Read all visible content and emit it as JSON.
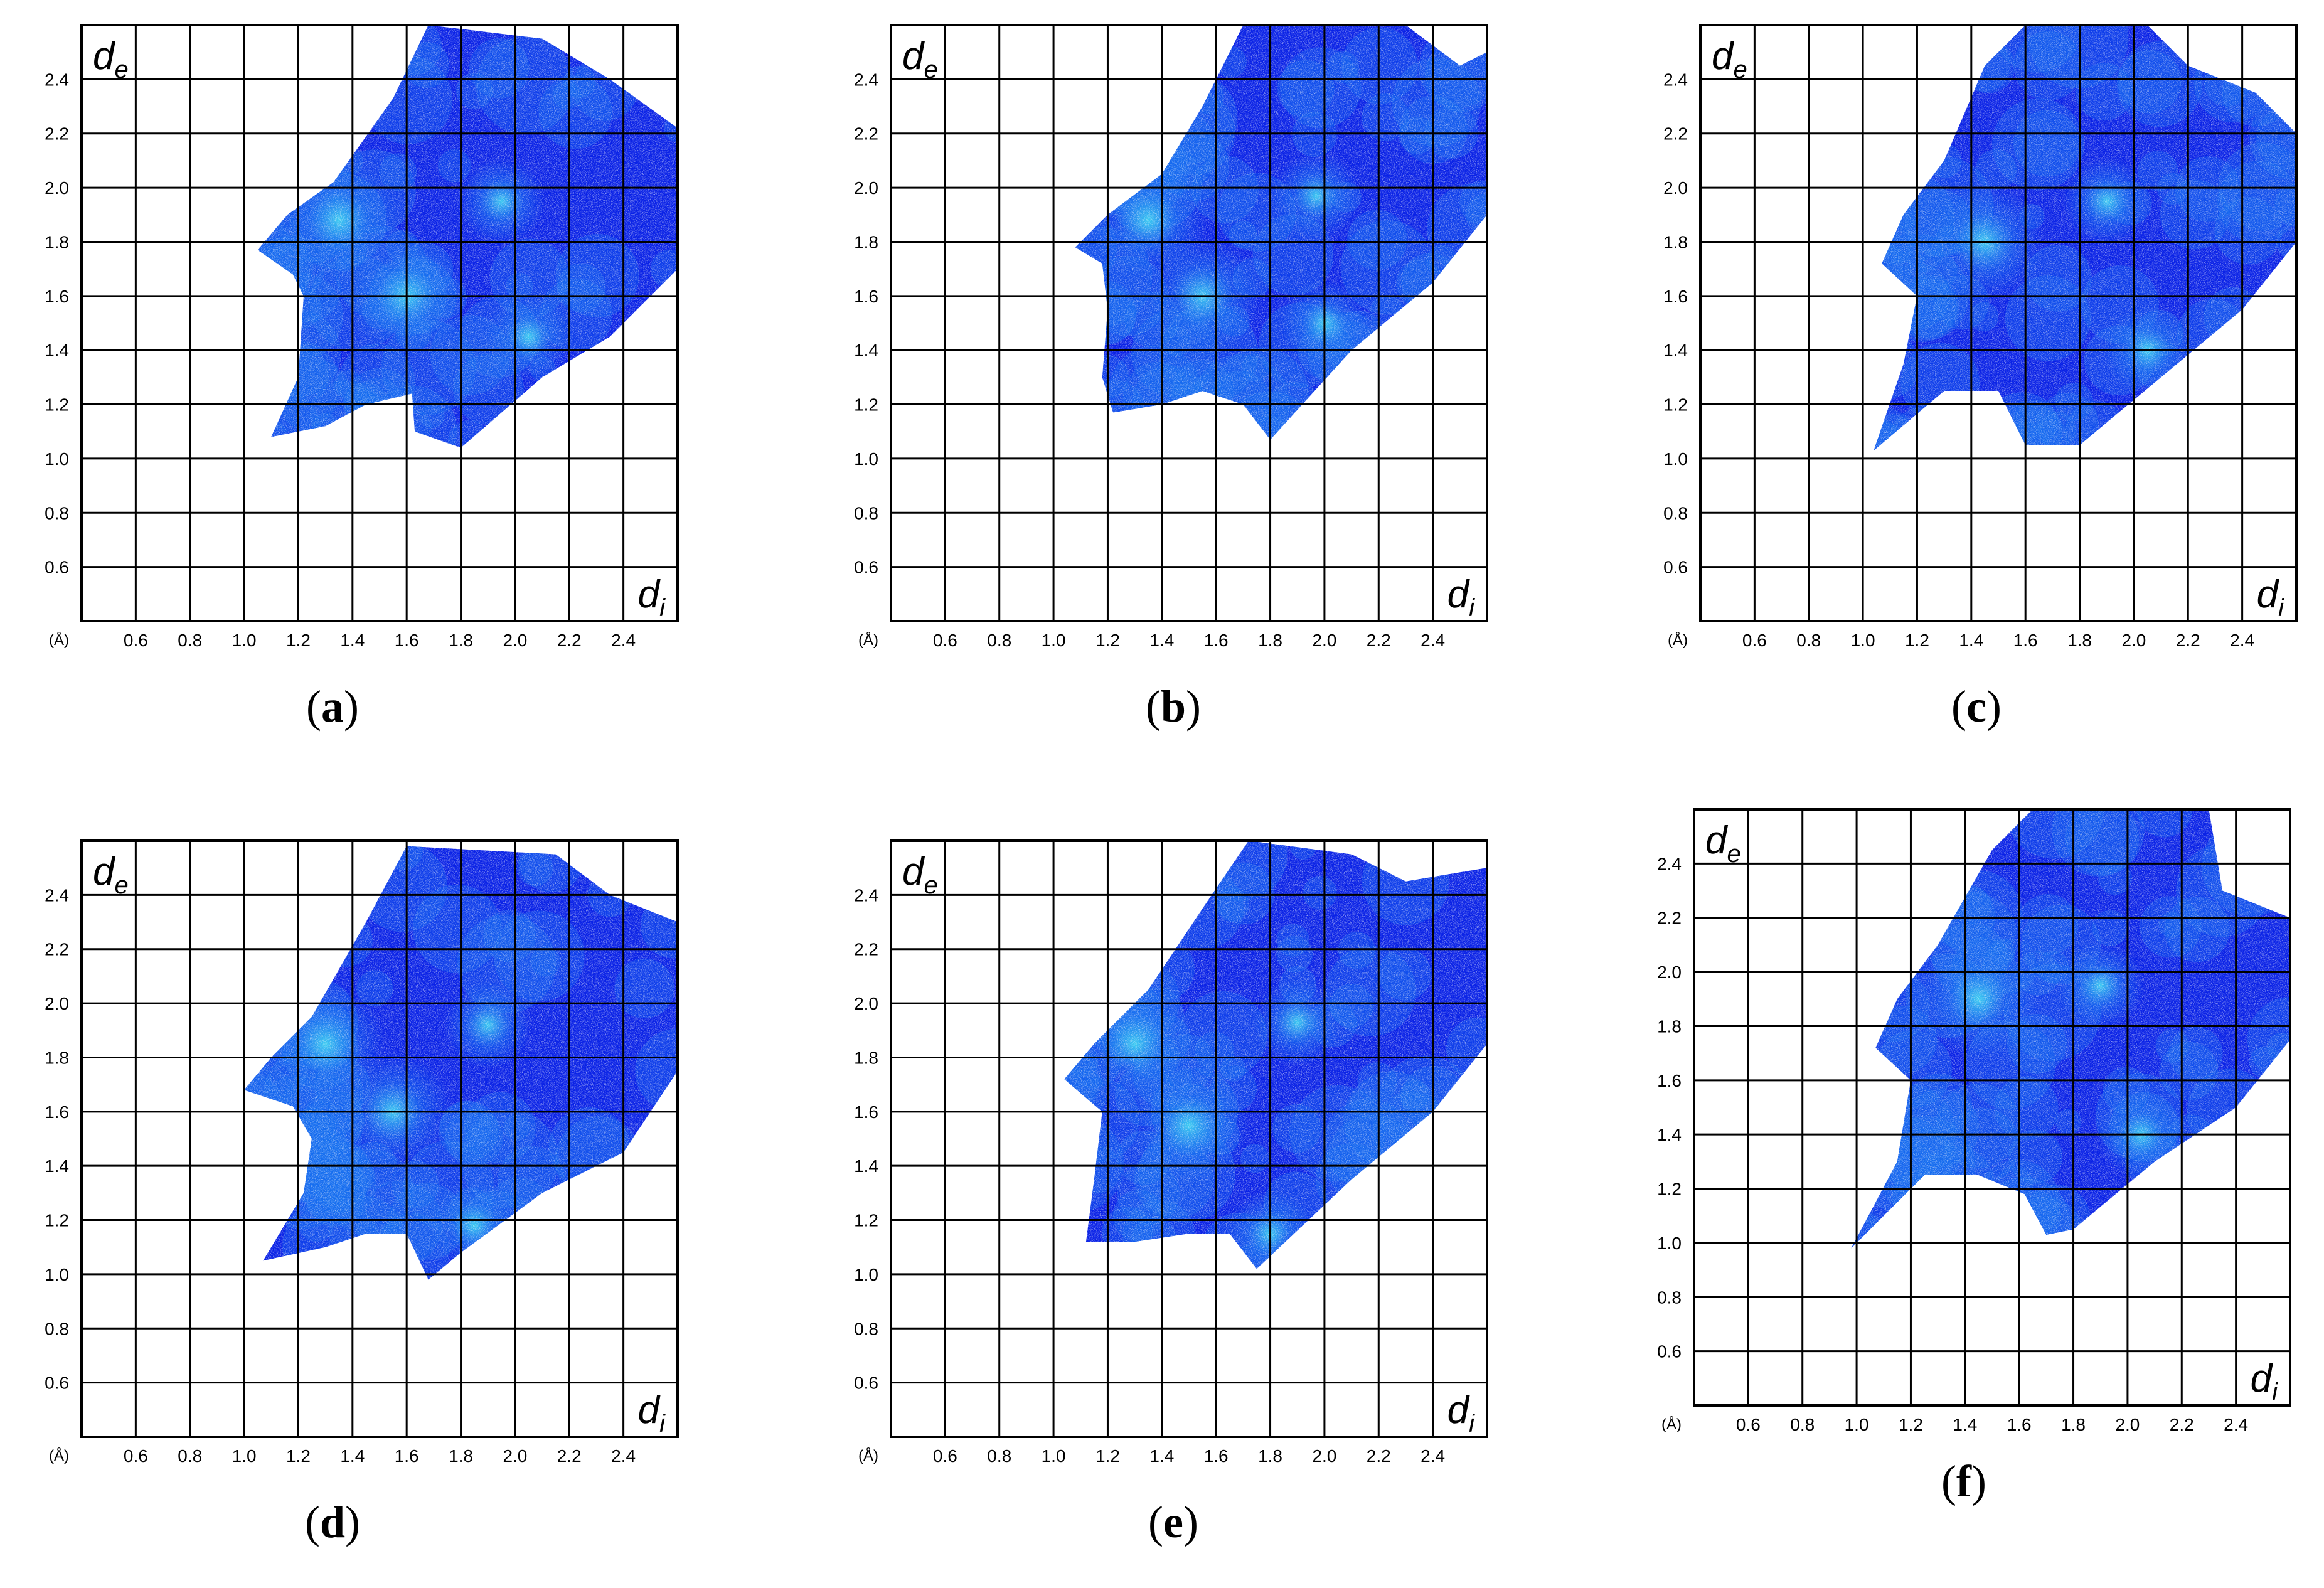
{
  "chart_data": [
    {
      "type": "heatmap",
      "label": "a",
      "x_ticks": [
        "0.6",
        "0.8",
        "1.0",
        "1.2",
        "1.4",
        "1.6",
        "1.8",
        "2.0",
        "2.2",
        "2.4"
      ],
      "y_ticks": [
        "0.6",
        "0.8",
        "1.0",
        "1.2",
        "1.4",
        "1.6",
        "1.8",
        "2.0",
        "2.2",
        "2.4"
      ],
      "x_unit": "(Å)",
      "xlabel": {
        "var": "d",
        "sub": "i"
      },
      "ylabel": {
        "var": "d",
        "sub": "e"
      },
      "xlim": [
        0.4,
        2.6
      ],
      "ylim": [
        0.4,
        2.6
      ],
      "grid": true,
      "region": [
        [
          1.05,
          1.77
        ],
        [
          1.16,
          1.9
        ],
        [
          1.33,
          2.02
        ],
        [
          1.55,
          2.33
        ],
        [
          1.68,
          2.6
        ],
        [
          2.1,
          2.55
        ],
        [
          2.35,
          2.4
        ],
        [
          2.6,
          2.22
        ],
        [
          2.6,
          1.7
        ],
        [
          2.35,
          1.45
        ],
        [
          2.1,
          1.3
        ],
        [
          1.8,
          1.04
        ],
        [
          1.63,
          1.1
        ],
        [
          1.62,
          1.24
        ],
        [
          1.45,
          1.2
        ],
        [
          1.3,
          1.12
        ],
        [
          1.1,
          1.08
        ],
        [
          1.2,
          1.3
        ],
        [
          1.22,
          1.6
        ],
        [
          1.18,
          1.68
        ]
      ],
      "hotspots": [
        {
          "x": 1.95,
          "y": 1.95
        },
        {
          "x": 1.35,
          "y": 1.88
        },
        {
          "x": 2.05,
          "y": 1.45
        },
        {
          "x": 1.6,
          "y": 1.6
        }
      ]
    },
    {
      "type": "heatmap",
      "label": "b",
      "x_ticks": [
        "0.6",
        "0.8",
        "1.0",
        "1.2",
        "1.4",
        "1.6",
        "1.8",
        "2.0",
        "2.2",
        "2.4"
      ],
      "y_ticks": [
        "0.6",
        "0.8",
        "1.0",
        "1.2",
        "1.4",
        "1.6",
        "1.8",
        "2.0",
        "2.2",
        "2.4"
      ],
      "x_unit": "(Å)",
      "xlabel": {
        "var": "d",
        "sub": "i"
      },
      "ylabel": {
        "var": "d",
        "sub": "e"
      },
      "xlim": [
        0.4,
        2.6
      ],
      "ylim": [
        0.4,
        2.6
      ],
      "grid": true,
      "region": [
        [
          1.08,
          1.78
        ],
        [
          1.2,
          1.9
        ],
        [
          1.4,
          2.05
        ],
        [
          1.55,
          2.3
        ],
        [
          1.7,
          2.6
        ],
        [
          2.3,
          2.6
        ],
        [
          2.5,
          2.45
        ],
        [
          2.6,
          2.5
        ],
        [
          2.6,
          1.9
        ],
        [
          2.4,
          1.65
        ],
        [
          2.1,
          1.4
        ],
        [
          1.8,
          1.07
        ],
        [
          1.7,
          1.2
        ],
        [
          1.55,
          1.25
        ],
        [
          1.4,
          1.2
        ],
        [
          1.22,
          1.17
        ],
        [
          1.18,
          1.3
        ],
        [
          1.2,
          1.55
        ],
        [
          1.18,
          1.72
        ]
      ],
      "hotspots": [
        {
          "x": 1.97,
          "y": 1.97
        },
        {
          "x": 1.35,
          "y": 1.88
        },
        {
          "x": 2.0,
          "y": 1.5
        },
        {
          "x": 1.55,
          "y": 1.6
        }
      ]
    },
    {
      "type": "heatmap",
      "label": "c",
      "x_ticks": [
        "0.6",
        "0.8",
        "1.0",
        "1.2",
        "1.4",
        "1.6",
        "1.8",
        "2.0",
        "2.2",
        "2.4"
      ],
      "y_ticks": [
        "0.6",
        "0.8",
        "1.0",
        "1.2",
        "1.4",
        "1.6",
        "1.8",
        "2.0",
        "2.2",
        "2.4"
      ],
      "x_unit": "(Å)",
      "xlabel": {
        "var": "d",
        "sub": "i"
      },
      "ylabel": {
        "var": "d",
        "sub": "e"
      },
      "xlim": [
        0.4,
        2.6
      ],
      "ylim": [
        0.4,
        2.6
      ],
      "grid": true,
      "region": [
        [
          1.07,
          1.72
        ],
        [
          1.15,
          1.9
        ],
        [
          1.3,
          2.1
        ],
        [
          1.45,
          2.45
        ],
        [
          1.6,
          2.6
        ],
        [
          2.05,
          2.6
        ],
        [
          2.2,
          2.45
        ],
        [
          2.45,
          2.35
        ],
        [
          2.6,
          2.2
        ],
        [
          2.6,
          1.8
        ],
        [
          2.4,
          1.55
        ],
        [
          2.1,
          1.3
        ],
        [
          1.8,
          1.05
        ],
        [
          1.6,
          1.05
        ],
        [
          1.5,
          1.25
        ],
        [
          1.3,
          1.25
        ],
        [
          1.04,
          1.03
        ],
        [
          1.15,
          1.35
        ],
        [
          1.2,
          1.6
        ]
      ],
      "hotspots": [
        {
          "x": 1.9,
          "y": 1.95
        },
        {
          "x": 1.45,
          "y": 1.8
        },
        {
          "x": 2.05,
          "y": 1.4
        }
      ]
    },
    {
      "type": "heatmap",
      "label": "d",
      "x_ticks": [
        "0.6",
        "0.8",
        "1.0",
        "1.2",
        "1.4",
        "1.6",
        "1.8",
        "2.0",
        "2.2",
        "2.4"
      ],
      "y_ticks": [
        "0.6",
        "0.8",
        "1.0",
        "1.2",
        "1.4",
        "1.6",
        "1.8",
        "2.0",
        "2.2",
        "2.4"
      ],
      "x_unit": "(Å)",
      "xlabel": {
        "var": "d",
        "sub": "i"
      },
      "ylabel": {
        "var": "d",
        "sub": "e"
      },
      "xlim": [
        0.4,
        2.6
      ],
      "ylim": [
        0.4,
        2.6
      ],
      "grid": true,
      "region": [
        [
          1.0,
          1.68
        ],
        [
          1.1,
          1.8
        ],
        [
          1.25,
          1.95
        ],
        [
          1.45,
          2.3
        ],
        [
          1.6,
          2.58
        ],
        [
          2.15,
          2.55
        ],
        [
          2.35,
          2.4
        ],
        [
          2.6,
          2.3
        ],
        [
          2.6,
          1.75
        ],
        [
          2.4,
          1.45
        ],
        [
          2.1,
          1.3
        ],
        [
          1.8,
          1.08
        ],
        [
          1.68,
          0.98
        ],
        [
          1.6,
          1.15
        ],
        [
          1.45,
          1.15
        ],
        [
          1.3,
          1.1
        ],
        [
          1.07,
          1.05
        ],
        [
          1.22,
          1.3
        ],
        [
          1.25,
          1.5
        ],
        [
          1.18,
          1.62
        ]
      ],
      "hotspots": [
        {
          "x": 1.9,
          "y": 1.92
        },
        {
          "x": 1.3,
          "y": 1.85
        },
        {
          "x": 1.85,
          "y": 1.18
        },
        {
          "x": 1.55,
          "y": 1.6
        }
      ]
    },
    {
      "type": "heatmap",
      "label": "e",
      "x_ticks": [
        "0.6",
        "0.8",
        "1.0",
        "1.2",
        "1.4",
        "1.6",
        "1.8",
        "2.0",
        "2.2",
        "2.4"
      ],
      "y_ticks": [
        "0.6",
        "0.8",
        "1.0",
        "1.2",
        "1.4",
        "1.6",
        "1.8",
        "2.0",
        "2.2",
        "2.4"
      ],
      "x_unit": "(Å)",
      "xlabel": {
        "var": "d",
        "sub": "i"
      },
      "ylabel": {
        "var": "d",
        "sub": "e"
      },
      "xlim": [
        0.4,
        2.6
      ],
      "ylim": [
        0.4,
        2.6
      ],
      "grid": true,
      "region": [
        [
          1.04,
          1.72
        ],
        [
          1.15,
          1.85
        ],
        [
          1.35,
          2.05
        ],
        [
          1.55,
          2.35
        ],
        [
          1.72,
          2.6
        ],
        [
          2.1,
          2.55
        ],
        [
          2.3,
          2.45
        ],
        [
          2.6,
          2.5
        ],
        [
          2.6,
          1.85
        ],
        [
          2.4,
          1.6
        ],
        [
          2.1,
          1.35
        ],
        [
          1.75,
          1.02
        ],
        [
          1.65,
          1.15
        ],
        [
          1.5,
          1.15
        ],
        [
          1.3,
          1.12
        ],
        [
          1.12,
          1.12
        ],
        [
          1.15,
          1.35
        ],
        [
          1.18,
          1.6
        ]
      ],
      "hotspots": [
        {
          "x": 1.9,
          "y": 1.93
        },
        {
          "x": 1.3,
          "y": 1.85
        },
        {
          "x": 1.8,
          "y": 1.15
        },
        {
          "x": 1.5,
          "y": 1.55
        }
      ]
    },
    {
      "type": "heatmap",
      "label": "f",
      "x_ticks": [
        "0.6",
        "0.8",
        "1.0",
        "1.2",
        "1.4",
        "1.6",
        "1.8",
        "2.0",
        "2.2",
        "2.4"
      ],
      "y_ticks": [
        "0.6",
        "0.8",
        "1.0",
        "1.2",
        "1.4",
        "1.6",
        "1.8",
        "2.0",
        "2.2",
        "2.4"
      ],
      "x_unit": "(Å)",
      "xlabel": {
        "var": "d",
        "sub": "i"
      },
      "ylabel": {
        "var": "d",
        "sub": "e"
      },
      "xlim": [
        0.4,
        2.6
      ],
      "ylim": [
        0.4,
        2.6
      ],
      "grid": true,
      "region": [
        [
          1.07,
          1.72
        ],
        [
          1.15,
          1.9
        ],
        [
          1.3,
          2.1
        ],
        [
          1.5,
          2.45
        ],
        [
          1.65,
          2.6
        ],
        [
          2.3,
          2.6
        ],
        [
          2.35,
          2.3
        ],
        [
          2.6,
          2.2
        ],
        [
          2.6,
          1.75
        ],
        [
          2.4,
          1.5
        ],
        [
          2.1,
          1.3
        ],
        [
          1.8,
          1.05
        ],
        [
          1.7,
          1.03
        ],
        [
          1.62,
          1.18
        ],
        [
          1.45,
          1.25
        ],
        [
          1.25,
          1.25
        ],
        [
          0.98,
          0.98
        ],
        [
          1.15,
          1.3
        ],
        [
          1.2,
          1.6
        ]
      ],
      "hotspots": [
        {
          "x": 1.9,
          "y": 1.95
        },
        {
          "x": 1.45,
          "y": 1.9
        },
        {
          "x": 2.05,
          "y": 1.4
        }
      ]
    }
  ],
  "colors": {
    "density_low": "#0a22e6",
    "density_mid": "#1670f0",
    "density_high": "#3fd2f2",
    "grid": "#000000"
  }
}
